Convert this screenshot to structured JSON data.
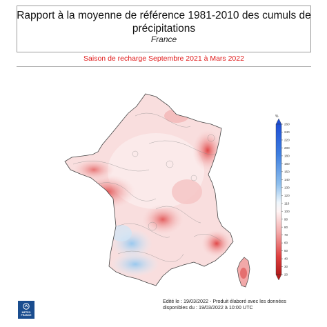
{
  "header": {
    "title": "Rapport à la moyenne de référence 1981-2010 des cumuls de précipitations",
    "subtitle": "France",
    "season": "Saison de recharge  Septembre 2021 à Mars 2022"
  },
  "legend": {
    "unit": "%",
    "ticks": [
      "260",
      "240",
      "220",
      "200",
      "180",
      "160",
      "150",
      "140",
      "130",
      "120",
      "110",
      "100",
      "90",
      "80",
      "70",
      "60",
      "50",
      "40",
      "30",
      "20"
    ],
    "colors": {
      "low": "#b31b1b",
      "mid": "#fff4f4",
      "high": "#1e4fd6"
    }
  },
  "footer": {
    "line1": "Edité le : 19/03/2022 - Produit élaboré avec les données",
    "line2": "disponibles du : 19/03/2022 à 10:00 UTC"
  },
  "logo": {
    "line1": "METEO",
    "line2": "FRANCE",
    "icon": "meteo-france-logo-icon"
  }
}
